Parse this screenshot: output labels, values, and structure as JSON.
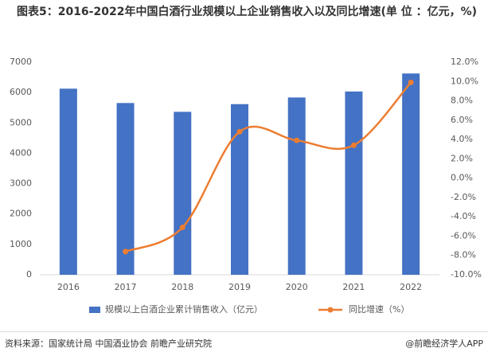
{
  "chart_data": {
    "type": "bar_line",
    "title": "图表5：2016-2022年中国白酒行业规模以上企业销售收入以及同比增速(单 位 ：亿元，%)",
    "categories": [
      "2016",
      "2017",
      "2018",
      "2019",
      "2020",
      "2021",
      "2022"
    ],
    "series": [
      {
        "name": "规模以上白酒企业累计销售收入（亿元）",
        "color": "#4472c4",
        "type": "bar",
        "values": [
          6126,
          5654,
          5364,
          5617,
          5836,
          6033,
          6626
        ]
      },
      {
        "name": "同比增速（%）",
        "color": "#ed7d31",
        "type": "line",
        "axis": "y2",
        "values": [
          null,
          -7.6,
          -5.1,
          4.8,
          3.9,
          3.4,
          9.9
        ]
      }
    ],
    "ylim": [
      0,
      7000
    ],
    "yticks": [
      0,
      1000,
      2000,
      3000,
      4000,
      5000,
      6000,
      7000
    ],
    "y2lim": [
      -10,
      12
    ],
    "y2ticks": [
      {
        "value": -10,
        "label": "-10.0%"
      },
      {
        "value": -8,
        "label": "-8.0%"
      },
      {
        "value": -6,
        "label": "-6.0%"
      },
      {
        "value": -4,
        "label": "-4.0%"
      },
      {
        "value": -2,
        "label": "-2.0%"
      },
      {
        "value": 0,
        "label": "0.0%"
      },
      {
        "value": 2,
        "label": "2.0%"
      },
      {
        "value": 4,
        "label": "4.0%"
      },
      {
        "value": 6,
        "label": "6.0%"
      },
      {
        "value": 8,
        "label": "8.0%"
      },
      {
        "value": 10,
        "label": "10.0%"
      },
      {
        "value": 12,
        "label": "12.0%"
      }
    ],
    "source": "资料来源：国家统计局 中国酒业协会 前瞻产业研究院",
    "brand": "@前瞻经济学人APP"
  }
}
